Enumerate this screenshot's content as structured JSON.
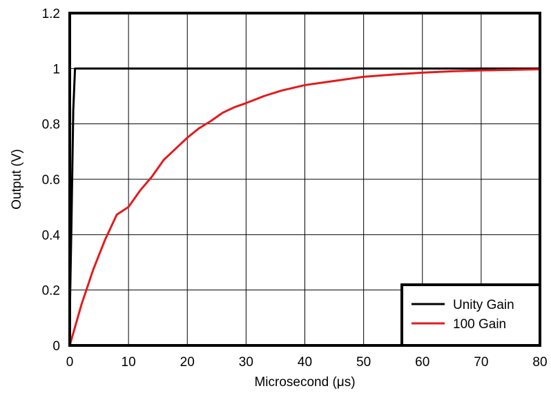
{
  "chart_data": {
    "type": "line",
    "title": "",
    "xlabel": "Microsecond (μs)",
    "ylabel": "Output (V)",
    "xlim": [
      0,
      80
    ],
    "ylim": [
      0,
      1.2
    ],
    "x_ticks": [
      "0",
      "10",
      "20",
      "30",
      "40",
      "50",
      "60",
      "70",
      "80"
    ],
    "y_ticks": [
      "0",
      "0.2",
      "0.4",
      "0.6",
      "0.8",
      "1",
      "1.2"
    ],
    "grid": true,
    "legend_position": "bottom-right",
    "series": [
      {
        "name": "Unity Gain",
        "color": "#000000",
        "points": [
          [
            0,
            0.1
          ],
          [
            0.3,
            0.45
          ],
          [
            0.6,
            0.85
          ],
          [
            0.9,
            1.0
          ],
          [
            80,
            1.0
          ]
        ]
      },
      {
        "name": "100 Gain",
        "color": "#e41a1c",
        "points": [
          [
            0,
            0
          ],
          [
            2,
            0.148
          ],
          [
            4,
            0.274
          ],
          [
            6,
            0.381
          ],
          [
            8,
            0.472
          ],
          [
            10,
            0.5
          ],
          [
            12,
            0.56
          ],
          [
            14,
            0.61
          ],
          [
            16,
            0.67
          ],
          [
            18,
            0.71
          ],
          [
            20,
            0.75
          ],
          [
            22,
            0.784
          ],
          [
            24,
            0.81
          ],
          [
            26,
            0.84
          ],
          [
            28,
            0.86
          ],
          [
            30,
            0.875
          ],
          [
            33,
            0.9
          ],
          [
            36,
            0.92
          ],
          [
            40,
            0.94
          ],
          [
            45,
            0.955
          ],
          [
            50,
            0.97
          ],
          [
            55,
            0.978
          ],
          [
            60,
            0.985
          ],
          [
            65,
            0.99
          ],
          [
            70,
            0.993
          ],
          [
            75,
            0.995
          ],
          [
            80,
            0.997
          ]
        ]
      }
    ]
  }
}
